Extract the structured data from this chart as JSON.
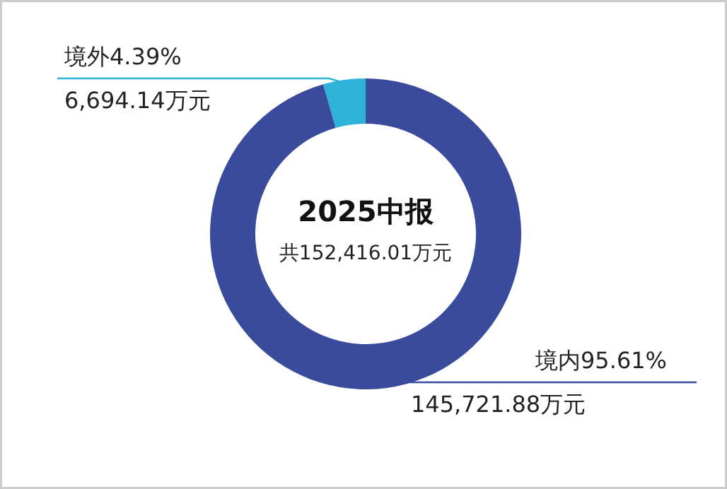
{
  "chart_data": {
    "type": "donut",
    "title": "2025中报",
    "subtitle": "共152,416.01万元",
    "categories": [
      "境外4.39%",
      "境内95.61%"
    ],
    "values": [
      6694.14,
      145721.88
    ],
    "value_labels": [
      "6,694.14万元",
      "145,721.88万元"
    ],
    "colors": [
      "#2db3d9",
      "#3a4a9c"
    ]
  }
}
